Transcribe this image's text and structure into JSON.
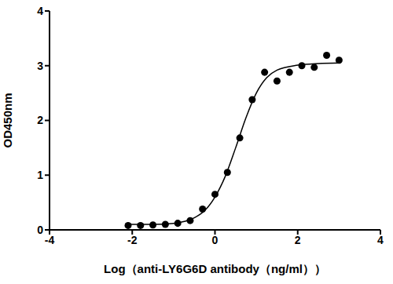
{
  "chart_data": {
    "type": "scatter",
    "x_label": "Log（anti-LY6G6D antibody（ng/ml））",
    "y_label": "OD450nm",
    "xlim": [
      -4,
      4
    ],
    "xticks": [
      -4,
      -2,
      0,
      2,
      4
    ],
    "ylim": [
      0,
      4
    ],
    "yticks": [
      0,
      1,
      2,
      3,
      4
    ],
    "grid": false,
    "series": [
      {
        "type": "scatter",
        "marker": "circle",
        "color": "#000000",
        "x": [
          -2.1,
          -1.8,
          -1.5,
          -1.2,
          -0.9,
          -0.6,
          -0.3,
          0.0,
          0.3,
          0.6,
          0.9,
          1.2,
          1.5,
          1.8,
          2.1,
          2.4,
          2.7,
          3.0
        ],
        "values": [
          0.08,
          0.08,
          0.09,
          0.1,
          0.12,
          0.17,
          0.38,
          0.65,
          1.05,
          1.68,
          2.38,
          2.88,
          2.72,
          2.88,
          3.0,
          2.97,
          3.19,
          3.1
        ]
      },
      {
        "type": "line",
        "line_style": "solid",
        "color": "#000000",
        "x": [
          -2.1,
          -1.5,
          -1.0,
          -0.5,
          -0.25,
          0.0,
          0.25,
          0.5,
          0.75,
          1.0,
          1.25,
          1.5,
          2.0,
          2.5,
          3.0
        ],
        "values": [
          0.1,
          0.1,
          0.12,
          0.22,
          0.35,
          0.6,
          0.98,
          1.5,
          2.05,
          2.5,
          2.78,
          2.92,
          3.01,
          3.04,
          3.05
        ]
      }
    ]
  }
}
